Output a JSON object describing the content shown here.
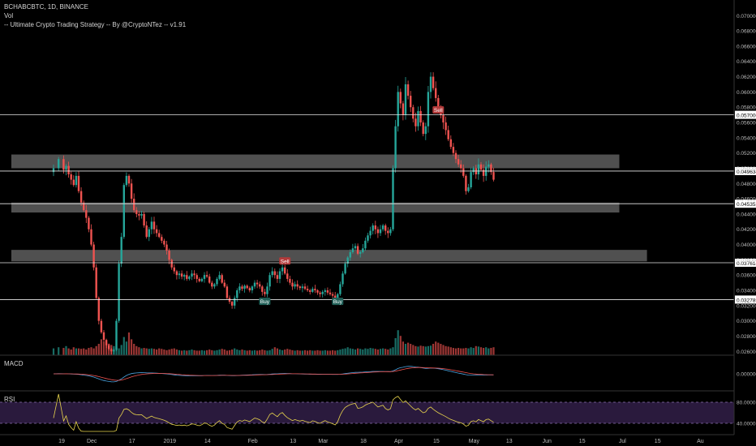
{
  "header": {
    "symbol_line": "BCHABCBTC, 1D, BINANCE",
    "vol_label": "Vol",
    "strategy_label": "-- Ultimate Crypto Trading Strategy -- By @CryptoNTez -- v1.91"
  },
  "panes": {
    "macd_label": "MACD",
    "macd_tick": "0.000000",
    "rsi_label": "RSI",
    "rsi_ticks": [
      "80.0000",
      "40.0000"
    ]
  },
  "colors": {
    "up": "#26a69a",
    "down": "#ef5350",
    "zone": "#6b6b6b",
    "rsi_line": "#e8d44d",
    "rsi_band": "#2a1a3d",
    "macd_line": "#4aa3df",
    "signal_line": "#ef5350",
    "buy_badge": "#1f5f57",
    "sell_badge": "#b33a3a"
  },
  "chart_data": {
    "type": "candlestick",
    "price_axis_ticks": [
      "0.070000",
      "0.068000",
      "0.066000",
      "0.064000",
      "0.062000",
      "0.060000",
      "0.058000",
      "0.056000",
      "0.054000",
      "0.052000",
      "0.050000",
      "0.048000",
      "0.046000",
      "0.044000",
      "0.042000",
      "0.040000",
      "0.038000",
      "0.036000",
      "0.034000",
      "0.032000",
      "0.030000",
      "0.028000",
      "0.026000"
    ],
    "price_axis_values": [
      0.07,
      0.068,
      0.066,
      0.064,
      0.062,
      0.06,
      0.058,
      0.056,
      0.054,
      0.052,
      0.05,
      0.048,
      0.046,
      0.044,
      0.042,
      0.04,
      0.038,
      0.036,
      0.034,
      0.032,
      0.03,
      0.028,
      0.026
    ],
    "ylim": [
      0.0255,
      0.0712
    ],
    "horizontal_levels": [
      {
        "value": 0.057,
        "label": "0.057000"
      },
      {
        "value": 0.049634,
        "label": "0.049634"
      },
      {
        "value": 0.045352,
        "label": "0.045352"
      },
      {
        "value": 0.037614,
        "label": "0.037614"
      },
      {
        "value": 0.032789,
        "label": "0.032789"
      }
    ],
    "zones": [
      {
        "from": 0.05,
        "to": 0.0518,
        "x_end": 225
      },
      {
        "from": 0.0442,
        "to": 0.0455,
        "x_end": 225
      },
      {
        "from": 0.0378,
        "to": 0.0393,
        "x_end": 236
      }
    ],
    "date_axis_labels": [
      "19",
      "Dec",
      "17",
      "2019",
      "14",
      "Feb",
      "13",
      "Mar",
      "18",
      "Apr",
      "15",
      "May",
      "13",
      "Jun",
      "15",
      "Jul",
      "15",
      "Au"
    ],
    "date_axis_days": [
      0,
      12,
      28,
      43,
      58,
      76,
      92,
      104,
      120,
      134,
      149,
      164,
      178,
      193,
      207,
      223,
      237,
      254
    ],
    "signals": [
      {
        "type": "Sell",
        "day": 92,
        "price": 0.0378
      },
      {
        "type": "Buy",
        "day": 84,
        "price": 0.0325
      },
      {
        "type": "Buy",
        "day": 113,
        "price": 0.0325
      },
      {
        "type": "Sell",
        "day": 153,
        "price": 0.0576
      }
    ],
    "close_series": [
      {
        "day": 0,
        "close": 0.05
      },
      {
        "day": 2,
        "close": 0.0512
      },
      {
        "day": 4,
        "close": 0.0498
      },
      {
        "day": 5,
        "close": 0.0503
      },
      {
        "day": 6,
        "close": 0.0492
      },
      {
        "day": 7,
        "close": 0.0485
      },
      {
        "day": 8,
        "close": 0.0478
      },
      {
        "day": 9,
        "close": 0.049
      },
      {
        "day": 10,
        "close": 0.047
      },
      {
        "day": 11,
        "close": 0.0455
      },
      {
        "day": 12,
        "close": 0.0445
      },
      {
        "day": 13,
        "close": 0.0435
      },
      {
        "day": 14,
        "close": 0.042
      },
      {
        "day": 15,
        "close": 0.04
      },
      {
        "day": 16,
        "close": 0.037
      },
      {
        "day": 17,
        "close": 0.033
      },
      {
        "day": 18,
        "close": 0.03
      },
      {
        "day": 19,
        "close": 0.0285
      },
      {
        "day": 20,
        "close": 0.0275
      },
      {
        "day": 21,
        "close": 0.0268
      },
      {
        "day": 22,
        "close": 0.0263
      },
      {
        "day": 23,
        "close": 0.026
      },
      {
        "day": 24,
        "close": 0.0262
      },
      {
        "day": 25,
        "close": 0.03
      },
      {
        "day": 26,
        "close": 0.0375
      },
      {
        "day": 27,
        "close": 0.041
      },
      {
        "day": 28,
        "close": 0.0478
      },
      {
        "day": 29,
        "close": 0.049
      },
      {
        "day": 30,
        "close": 0.048
      },
      {
        "day": 31,
        "close": 0.046
      },
      {
        "day": 32,
        "close": 0.0445
      },
      {
        "day": 33,
        "close": 0.044
      },
      {
        "day": 34,
        "close": 0.0438
      },
      {
        "day": 35,
        "close": 0.044
      },
      {
        "day": 36,
        "close": 0.0425
      },
      {
        "day": 37,
        "close": 0.041
      },
      {
        "day": 38,
        "close": 0.042
      },
      {
        "day": 39,
        "close": 0.043
      },
      {
        "day": 40,
        "close": 0.042
      },
      {
        "day": 41,
        "close": 0.0415
      },
      {
        "day": 42,
        "close": 0.041
      },
      {
        "day": 43,
        "close": 0.0405
      },
      {
        "day": 44,
        "close": 0.04
      },
      {
        "day": 45,
        "close": 0.0392
      },
      {
        "day": 46,
        "close": 0.038
      },
      {
        "day": 47,
        "close": 0.037
      },
      {
        "day": 48,
        "close": 0.0365
      },
      {
        "day": 49,
        "close": 0.036
      },
      {
        "day": 50,
        "close": 0.0362
      },
      {
        "day": 51,
        "close": 0.0358
      },
      {
        "day": 52,
        "close": 0.036
      },
      {
        "day": 53,
        "close": 0.0355
      },
      {
        "day": 54,
        "close": 0.0358
      },
      {
        "day": 55,
        "close": 0.0362
      },
      {
        "day": 56,
        "close": 0.036
      },
      {
        "day": 57,
        "close": 0.0355
      },
      {
        "day": 58,
        "close": 0.0352
      },
      {
        "day": 59,
        "close": 0.0355
      },
      {
        "day": 60,
        "close": 0.036
      },
      {
        "day": 61,
        "close": 0.0358
      },
      {
        "day": 62,
        "close": 0.035
      },
      {
        "day": 63,
        "close": 0.0345
      },
      {
        "day": 64,
        "close": 0.0348
      },
      {
        "day": 65,
        "close": 0.0355
      },
      {
        "day": 66,
        "close": 0.036
      },
      {
        "day": 67,
        "close": 0.035
      },
      {
        "day": 68,
        "close": 0.0345
      },
      {
        "day": 69,
        "close": 0.033
      },
      {
        "day": 70,
        "close": 0.0325
      },
      {
        "day": 71,
        "close": 0.032
      },
      {
        "day": 72,
        "close": 0.033
      },
      {
        "day": 73,
        "close": 0.034
      },
      {
        "day": 74,
        "close": 0.0345
      },
      {
        "day": 75,
        "close": 0.0342
      },
      {
        "day": 76,
        "close": 0.0346
      },
      {
        "day": 77,
        "close": 0.0343
      },
      {
        "day": 78,
        "close": 0.034
      },
      {
        "day": 79,
        "close": 0.0345
      },
      {
        "day": 80,
        "close": 0.035
      },
      {
        "day": 81,
        "close": 0.0348
      },
      {
        "day": 82,
        "close": 0.0345
      },
      {
        "day": 83,
        "close": 0.0338
      },
      {
        "day": 84,
        "close": 0.0335
      },
      {
        "day": 85,
        "close": 0.0345
      },
      {
        "day": 86,
        "close": 0.036
      },
      {
        "day": 87,
        "close": 0.0365
      },
      {
        "day": 88,
        "close": 0.036
      },
      {
        "day": 89,
        "close": 0.0355
      },
      {
        "day": 90,
        "close": 0.0365
      },
      {
        "day": 91,
        "close": 0.037
      },
      {
        "day": 92,
        "close": 0.0362
      },
      {
        "day": 93,
        "close": 0.0355
      },
      {
        "day": 94,
        "close": 0.035
      },
      {
        "day": 95,
        "close": 0.0345
      },
      {
        "day": 96,
        "close": 0.0348
      },
      {
        "day": 97,
        "close": 0.0345
      },
      {
        "day": 98,
        "close": 0.0343
      },
      {
        "day": 99,
        "close": 0.0345
      },
      {
        "day": 100,
        "close": 0.0342
      },
      {
        "day": 101,
        "close": 0.034
      },
      {
        "day": 102,
        "close": 0.0338
      },
      {
        "day": 103,
        "close": 0.0342
      },
      {
        "day": 104,
        "close": 0.034
      },
      {
        "day": 105,
        "close": 0.0337
      },
      {
        "day": 106,
        "close": 0.0335
      },
      {
        "day": 107,
        "close": 0.0338
      },
      {
        "day": 108,
        "close": 0.034
      },
      {
        "day": 109,
        "close": 0.0337
      },
      {
        "day": 110,
        "close": 0.0335
      },
      {
        "day": 111,
        "close": 0.0333
      },
      {
        "day": 112,
        "close": 0.033
      },
      {
        "day": 113,
        "close": 0.0335
      },
      {
        "day": 114,
        "close": 0.0348
      },
      {
        "day": 115,
        "close": 0.0362
      },
      {
        "day": 116,
        "close": 0.0375
      },
      {
        "day": 117,
        "close": 0.0383
      },
      {
        "day": 118,
        "close": 0.039
      },
      {
        "day": 119,
        "close": 0.0395
      },
      {
        "day": 120,
        "close": 0.0398
      },
      {
        "day": 121,
        "close": 0.0388
      },
      {
        "day": 122,
        "close": 0.039
      },
      {
        "day": 123,
        "close": 0.0395
      },
      {
        "day": 124,
        "close": 0.0405
      },
      {
        "day": 125,
        "close": 0.0412
      },
      {
        "day": 126,
        "close": 0.0418
      },
      {
        "day": 127,
        "close": 0.0425
      },
      {
        "day": 128,
        "close": 0.042
      },
      {
        "day": 129,
        "close": 0.0415
      },
      {
        "day": 130,
        "close": 0.042
      },
      {
        "day": 131,
        "close": 0.0425
      },
      {
        "day": 132,
        "close": 0.0418
      },
      {
        "day": 133,
        "close": 0.0415
      },
      {
        "day": 134,
        "close": 0.042
      },
      {
        "day": 135,
        "close": 0.05
      },
      {
        "day": 136,
        "close": 0.0555
      },
      {
        "day": 137,
        "close": 0.06
      },
      {
        "day": 138,
        "close": 0.0585
      },
      {
        "day": 139,
        "close": 0.057
      },
      {
        "day": 140,
        "close": 0.061
      },
      {
        "day": 141,
        "close": 0.0595
      },
      {
        "day": 142,
        "close": 0.058
      },
      {
        "day": 143,
        "close": 0.0565
      },
      {
        "day": 144,
        "close": 0.0555
      },
      {
        "day": 145,
        "close": 0.0575
      },
      {
        "day": 146,
        "close": 0.056
      },
      {
        "day": 147,
        "close": 0.0545
      },
      {
        "day": 148,
        "close": 0.0555
      },
      {
        "day": 149,
        "close": 0.06
      },
      {
        "day": 150,
        "close": 0.062
      },
      {
        "day": 151,
        "close": 0.0605
      },
      {
        "day": 152,
        "close": 0.0592
      },
      {
        "day": 153,
        "close": 0.058
      },
      {
        "day": 154,
        "close": 0.057
      },
      {
        "day": 155,
        "close": 0.056
      },
      {
        "day": 156,
        "close": 0.055
      },
      {
        "day": 157,
        "close": 0.0538
      },
      {
        "day": 158,
        "close": 0.0528
      },
      {
        "day": 159,
        "close": 0.052
      },
      {
        "day": 160,
        "close": 0.0512
      },
      {
        "day": 161,
        "close": 0.0505
      },
      {
        "day": 162,
        "close": 0.05
      },
      {
        "day": 163,
        "close": 0.049
      },
      {
        "day": 164,
        "close": 0.047
      },
      {
        "day": 165,
        "close": 0.0475
      },
      {
        "day": 166,
        "close": 0.0495
      },
      {
        "day": 167,
        "close": 0.05
      },
      {
        "day": 168,
        "close": 0.0492
      },
      {
        "day": 169,
        "close": 0.0505
      },
      {
        "day": 170,
        "close": 0.0498
      },
      {
        "day": 171,
        "close": 0.049
      },
      {
        "day": 172,
        "close": 0.0502
      },
      {
        "day": 173,
        "close": 0.0505
      },
      {
        "day": 174,
        "close": 0.0495
      },
      {
        "day": 175,
        "close": 0.0485
      }
    ],
    "volume_relative": [
      0.3,
      0.35,
      0.32,
      0.4,
      0.3,
      0.25,
      0.35,
      0.3,
      0.3,
      0.28,
      0.3,
      0.25,
      0.32,
      0.35,
      0.3,
      0.4,
      0.5,
      0.7,
      0.6,
      0.55,
      0.5,
      0.45,
      0.4,
      0.35,
      0.3,
      0.45,
      0.8,
      0.6,
      1.0,
      0.7,
      0.5,
      0.4,
      0.35,
      0.3,
      0.32,
      0.3,
      0.28,
      0.3,
      0.28,
      0.25,
      0.3,
      0.28,
      0.25,
      0.22,
      0.25,
      0.28,
      0.3,
      0.25,
      0.22,
      0.2,
      0.22,
      0.2,
      0.22,
      0.25,
      0.22,
      0.2,
      0.2,
      0.22,
      0.2,
      0.22,
      0.25,
      0.22,
      0.2,
      0.22,
      0.25,
      0.28,
      0.25,
      0.2,
      0.22,
      0.25,
      0.3,
      0.25,
      0.22,
      0.25,
      0.22,
      0.2,
      0.22,
      0.2,
      0.22,
      0.2,
      0.22,
      0.25,
      0.22,
      0.2,
      0.22,
      0.28,
      0.35,
      0.3,
      0.25,
      0.22,
      0.25,
      0.28,
      0.25,
      0.22,
      0.2,
      0.22,
      0.2,
      0.2,
      0.22,
      0.2,
      0.22,
      0.2,
      0.2,
      0.22,
      0.2,
      0.2,
      0.22,
      0.2,
      0.2,
      0.22,
      0.2,
      0.22,
      0.25,
      0.28,
      0.3,
      0.35,
      0.3,
      0.28,
      0.25,
      0.3,
      0.28,
      0.25,
      0.3,
      0.28,
      0.32,
      0.3,
      0.28,
      0.25,
      0.28,
      0.3,
      0.28,
      0.25,
      0.3,
      0.35,
      0.75,
      1.1,
      0.85,
      0.6,
      0.5,
      0.55,
      0.5,
      0.45,
      0.4,
      0.38,
      0.42,
      0.4,
      0.38,
      0.4,
      0.42,
      0.5,
      0.6,
      0.55,
      0.5,
      0.45,
      0.4,
      0.38,
      0.35,
      0.32,
      0.3,
      0.32,
      0.3,
      0.3,
      0.32,
      0.3,
      0.35,
      0.32,
      0.4,
      0.38,
      0.35,
      0.32,
      0.35,
      0.3,
      0.32,
      0.35,
      0.3,
      0.28,
      0.25
    ]
  }
}
